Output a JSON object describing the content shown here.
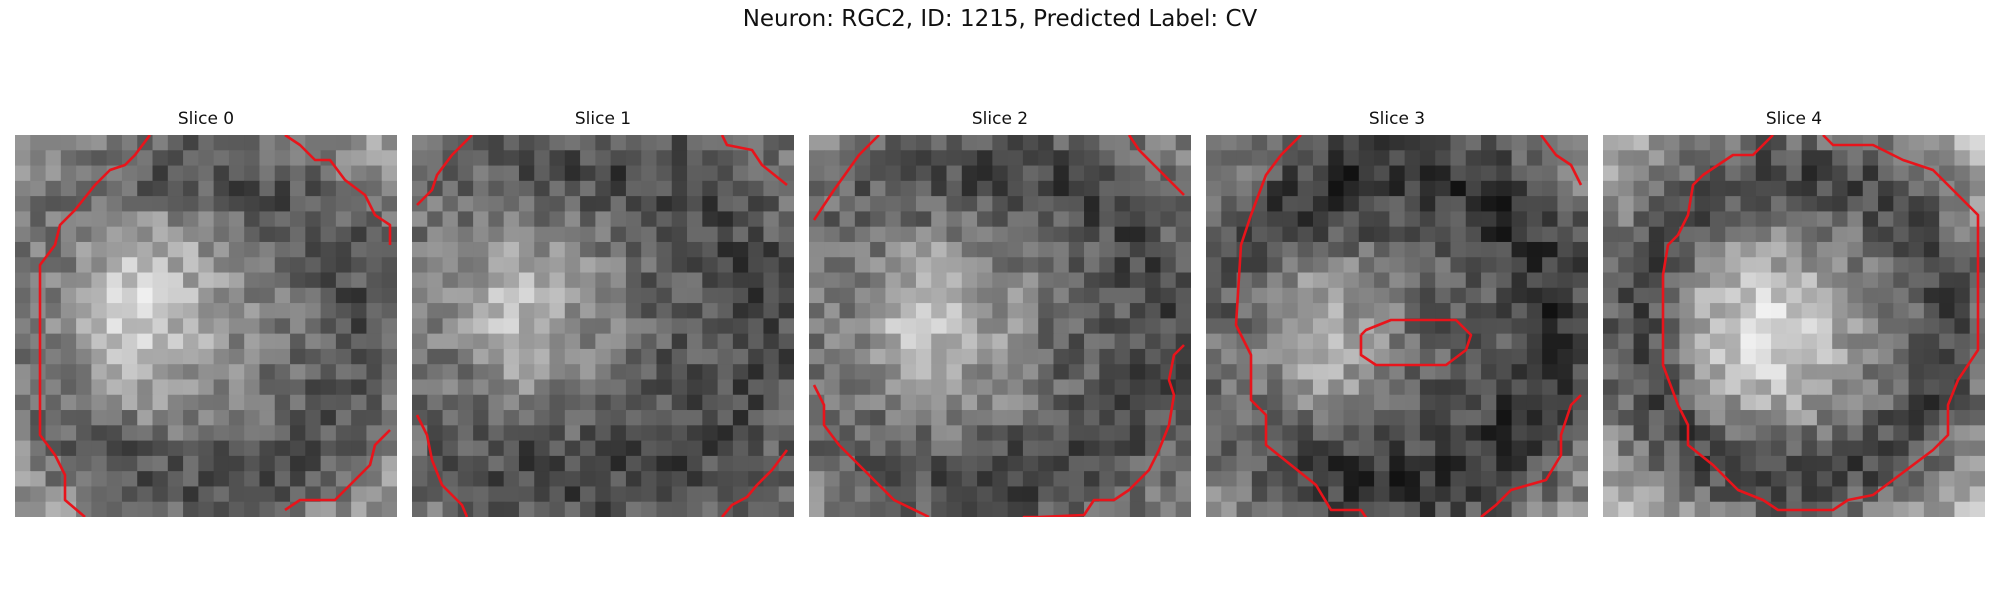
{
  "figure": {
    "title": "Neuron: RGC2, ID: 1215, Predicted Label: CV"
  },
  "panels": [
    {
      "title": "Slice 0"
    },
    {
      "title": "Slice 1"
    },
    {
      "title": "Slice 2"
    },
    {
      "title": "Slice 3"
    },
    {
      "title": "Slice 4"
    }
  ],
  "colors": {
    "contour": "#e8141b",
    "colormap": "gray"
  },
  "chart_data": {
    "type": "heatmap",
    "grid_size": [
      25,
      25
    ],
    "colormap": "gray",
    "contour_color": "#e8141b"
  }
}
